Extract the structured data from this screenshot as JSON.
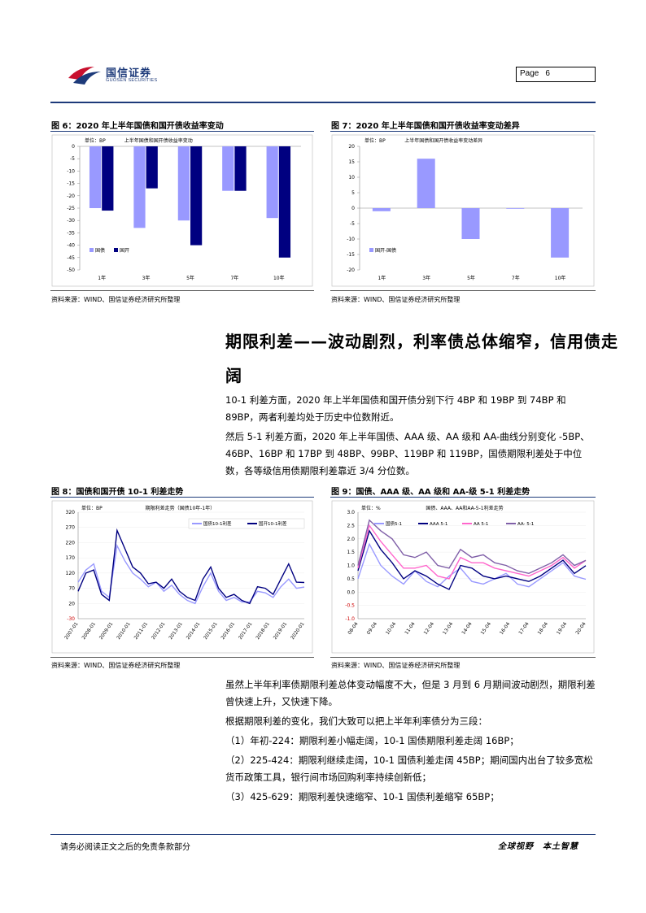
{
  "header": {
    "logo_cn": "国信证券",
    "logo_en": "GUOSEN SECURITIES",
    "page_label": "Page",
    "page_number": "6"
  },
  "figures": {
    "fig6": {
      "title": "图 6：2020 年上半年国债和国开债收益率变动",
      "source": "资料来源：WIND、国信证券经济研究所整理"
    },
    "fig7": {
      "title": "图 7：2020 年上半年国债和国开债收益率变动差异",
      "source": "资料来源：WIND、国信证券经济研究所整理"
    },
    "fig8": {
      "title": "图 8：国债和国开债 10-1 利差走势",
      "source": "资料来源：WIND、国信证券经济研究所整理"
    },
    "fig9": {
      "title": "图 9：国债、AAA 级、AA 级和 AA-级 5-1 利差走势",
      "source": "资料来源：WIND、国信证券经济研究所整理"
    }
  },
  "section": {
    "heading_line1": "期限利差——波动剧烈，利率债总体缩窄，信用债走",
    "heading_line2": "阔",
    "para1": "10-1 利差方面，2020 年上半年国债和国开债分别下行 4BP 和 19BP 到 74BP 和 89BP，两者利差均处于历史中位数附近。",
    "para2": "然后 5-1 利差方面，2020 年上半年国债、AAA 级、AA 级和 AA-曲线分别变化 -5BP、46BP、16BP 和 17BP 到 48BP、99BP、119BP 和 119BP，国债期限利差处于中位数，各等级信用债期限利差靠近 3/4 分位数。",
    "para3": "虽然上半年利率债期限利差总体变动幅度不大，但是 3 月到 6 月期间波动剧烈，期限利差曾快速上升，又快速下降。",
    "para4": "根据期限利差的变化，我们大致可以把上半年利率债分为三段：",
    "para5": "（1）年初-224：期限利差小幅走阔，10-1 国债期限利差走阔 16BP；",
    "para6": "（2）225-424：期限利继续走阔，10-1 国债利差走阔 45BP；期间国内出台了较多宽松货币政策工具，银行间市场回购利率持续创新低；",
    "para7": "（3）425-629：期限利差快速缩窄、10-1 国债利差缩窄 65BP；"
  },
  "footer": {
    "disclaimer": "请务必阅读正文之后的免责条款部分",
    "slogan": "全球视野　本土智慧"
  },
  "chart_data": [
    {
      "type": "bar",
      "id": "fig6",
      "unit_label": "单位：BP",
      "inner_title": "上半年国债和国开债收益率变动",
      "categories": [
        "1年",
        "3年",
        "5年",
        "7年",
        "10年"
      ],
      "series": [
        {
          "name": "国债",
          "color": "#9999ff",
          "values": [
            -25,
            -33,
            -30,
            -18,
            -29
          ]
        },
        {
          "name": "国开",
          "color": "#000080",
          "values": [
            -26,
            -17,
            -40,
            -18,
            -45
          ]
        }
      ],
      "ylim": [
        -50,
        0
      ],
      "yticks": [
        0,
        -5,
        -10,
        -15,
        -20,
        -25,
        -30,
        -35,
        -40,
        -45,
        -50
      ],
      "legend": "bottom-left"
    },
    {
      "type": "bar",
      "id": "fig7",
      "unit_label": "单位：BP",
      "inner_title": "上半年国债和国开债收益率变动差异",
      "categories": [
        "1年",
        "3年",
        "5年",
        "7年",
        "10年"
      ],
      "series": [
        {
          "name": "国开-国债",
          "color": "#9999ff",
          "values": [
            -1,
            16,
            -10,
            0,
            -16
          ]
        }
      ],
      "ylim": [
        -20,
        20
      ],
      "yticks": [
        20,
        15,
        10,
        5,
        0,
        -5,
        -10,
        -15,
        -20
      ],
      "legend": "bottom-left"
    },
    {
      "type": "line",
      "id": "fig8",
      "unit_label": "单位：BP",
      "inner_title": "期限利差走势（国债10年-1年）",
      "x_labels": [
        "2007-01",
        "2008-01",
        "2009-01",
        "2010-01",
        "2011-01",
        "2012-01",
        "2013-01",
        "2014-01",
        "2015-01",
        "2016-01",
        "2017-01",
        "2018-01",
        "2019-01",
        "2020-01"
      ],
      "ylim": [
        -30,
        320
      ],
      "yticks": [
        320,
        270,
        220,
        170,
        120,
        70,
        20,
        -30
      ],
      "series": [
        {
          "name": "国债10-1利差",
          "color": "#9999ff",
          "values": [
            90,
            130,
            150,
            60,
            40,
            210,
            160,
            120,
            100,
            75,
            90,
            60,
            80,
            50,
            30,
            20,
            75,
            120,
            60,
            30,
            40,
            25,
            25,
            60,
            55,
            40,
            75,
            100,
            70,
            74
          ]
        },
        {
          "name": "国开10-1利差",
          "color": "#000080",
          "values": [
            60,
            120,
            130,
            50,
            30,
            260,
            200,
            140,
            120,
            85,
            90,
            70,
            100,
            60,
            40,
            30,
            100,
            140,
            70,
            40,
            50,
            30,
            20,
            75,
            70,
            50,
            100,
            150,
            90,
            89
          ]
        }
      ],
      "legend": "top-right"
    },
    {
      "type": "line",
      "id": "fig9",
      "unit_label": "单位：%",
      "inner_title": "国债、AAA、AA和AA-5-1利差走势",
      "x_labels": [
        "08-04",
        "09-04",
        "10-04",
        "11-04",
        "12-04",
        "13-04",
        "14-04",
        "15-04",
        "16-04",
        "17-04",
        "18-04",
        "19-04",
        "20-04"
      ],
      "ylim": [
        -1.0,
        3.0
      ],
      "yticks": [
        3.0,
        2.5,
        2.0,
        1.5,
        1.0,
        0.5,
        0.0,
        -0.5,
        -1.0
      ],
      "series": [
        {
          "name": "国债5-1",
          "color": "#9999ff",
          "values": [
            0.5,
            1.8,
            1.0,
            0.6,
            0.3,
            0.8,
            0.4,
            0.2,
            0.6,
            0.9,
            0.4,
            0.3,
            0.5,
            0.7,
            0.3,
            0.2,
            0.5,
            0.8,
            1.1,
            0.6,
            0.48
          ]
        },
        {
          "name": "AAA 5-1",
          "color": "#000080",
          "values": [
            0.8,
            2.3,
            1.6,
            1.1,
            0.5,
            0.8,
            0.6,
            0.3,
            0.1,
            1.0,
            0.9,
            0.6,
            0.5,
            0.6,
            0.5,
            0.4,
            0.6,
            0.9,
            1.2,
            0.7,
            0.99
          ]
        },
        {
          "name": "AA 5-1",
          "color": "#ff66cc",
          "values": [
            0.9,
            2.5,
            1.9,
            1.4,
            0.9,
            0.9,
            1.0,
            0.6,
            0.5,
            1.3,
            1.1,
            1.1,
            0.9,
            0.8,
            0.7,
            0.6,
            0.8,
            1.0,
            1.3,
            0.9,
            1.19
          ]
        },
        {
          "name": "AA-  5-1",
          "color": "#8060a8",
          "values": [
            1.0,
            2.7,
            2.3,
            2.0,
            1.4,
            1.3,
            1.5,
            1.0,
            0.9,
            1.6,
            1.3,
            1.4,
            1.1,
            1.0,
            0.8,
            0.7,
            0.9,
            1.1,
            1.4,
            1.0,
            1.19
          ]
        }
      ],
      "legend": "top"
    }
  ]
}
